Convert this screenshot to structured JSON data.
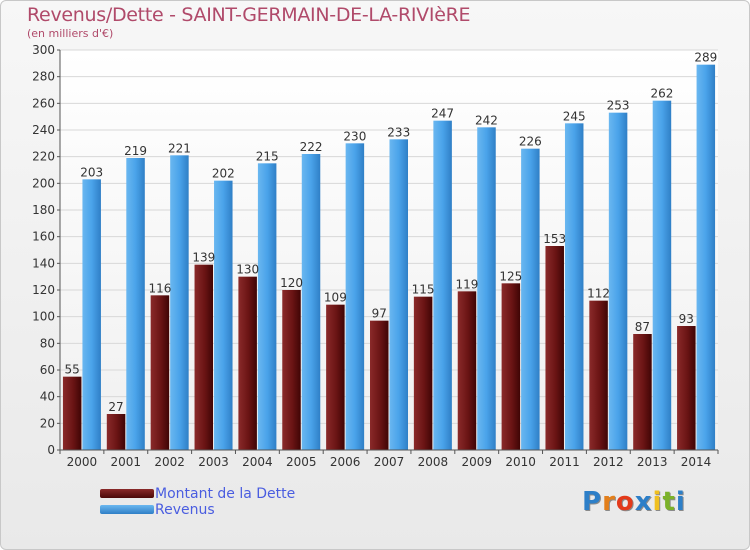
{
  "page": {
    "title": "Revenus/Dette - SAINT-GERMAIN-DE-LA-RIVIèRE",
    "subtitle": "(en milliers d'€)"
  },
  "legend": {
    "items": [
      {
        "label": "Montant de la Dette",
        "color": "#6e1818"
      },
      {
        "label": "Revenus",
        "color": "#4aa3ea"
      }
    ]
  },
  "logo": {
    "text": "Proxiti",
    "letters": [
      {
        "ch": "P",
        "color": "#2d7fc8"
      },
      {
        "ch": "r",
        "color": "#e37f1b"
      },
      {
        "ch": "o",
        "color": "#e33a1b"
      },
      {
        "ch": "x",
        "color": "#2d7fc8"
      },
      {
        "ch": "i",
        "color": "#f0c020"
      },
      {
        "ch": "t",
        "color": "#7cb22a"
      },
      {
        "ch": "i",
        "color": "#2d7fc8"
      }
    ]
  },
  "chart_data": {
    "type": "bar",
    "title": "Revenus/Dette - SAINT-GERMAIN-DE-LA-RIVIèRE",
    "subtitle": "(en milliers d'€)",
    "categories": [
      "2000",
      "2001",
      "2002",
      "2003",
      "2004",
      "2005",
      "2006",
      "2007",
      "2008",
      "2009",
      "2010",
      "2011",
      "2012",
      "2013",
      "2014"
    ],
    "series": [
      {
        "name": "Montant de la Dette",
        "color": "#6e1818",
        "values": [
          55,
          27,
          116,
          139,
          130,
          120,
          109,
          97,
          115,
          119,
          125,
          153,
          112,
          87,
          93
        ]
      },
      {
        "name": "Revenus",
        "color": "#4aa3ea",
        "values": [
          203,
          219,
          221,
          202,
          215,
          222,
          230,
          233,
          247,
          242,
          226,
          245,
          253,
          262,
          289
        ]
      }
    ],
    "y_ticks": [
      0,
      20,
      40,
      60,
      80,
      100,
      120,
      140,
      160,
      180,
      200,
      220,
      240,
      260,
      280,
      300
    ],
    "ylim": [
      0,
      300
    ],
    "grid": true,
    "legend_position": "bottom-left"
  }
}
